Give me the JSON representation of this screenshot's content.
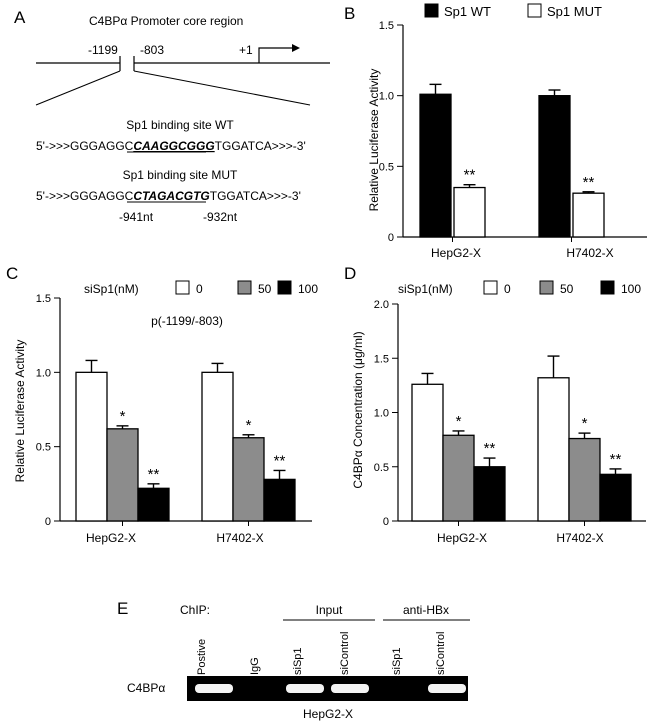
{
  "panel_labels": {
    "a": "A",
    "b": "B",
    "c": "C",
    "d": "D",
    "e": "E"
  },
  "panel_a": {
    "title": "C4BPα Promoter core region",
    "pos_1199": "-1199",
    "pos_803": "-803",
    "pos_plus1": "+1",
    "wt_label": "Sp1 binding site WT",
    "wt_seq_prefix": "5'->>>GGGAGGC",
    "wt_seq_site": "CAAGGCGGG",
    "wt_seq_suffix": "TGGATCA>>>-3'",
    "mut_label": "Sp1 binding site MUT",
    "mut_seq_prefix": "5'->>>GGGAGGC",
    "mut_seq_site": "CTAGACGTG",
    "mut_seq_suffix": "TGGATCA>>>-3'",
    "nt_left": "-941nt",
    "nt_right": "-932nt"
  },
  "panel_e": {
    "chip_label": "ChIP:",
    "group_input": "Input",
    "group_antihbx": "anti-HBx",
    "lanes": [
      "Postive",
      "IgG",
      "siSp1",
      "siControl",
      "siSp1",
      "siControl"
    ],
    "band_presence": [
      1,
      0,
      1,
      1,
      0,
      1
    ],
    "row_label": "C4BPα",
    "bottom_label": "HepG2-X"
  },
  "chart_data": [
    {
      "id": "B",
      "type": "bar",
      "title": "",
      "legend": [
        "Sp1 WT",
        "Sp1 MUT"
      ],
      "legend_colors": [
        "#000000",
        "#ffffff"
      ],
      "categories": [
        "HepG2-X",
        "H7402-X"
      ],
      "series": [
        {
          "name": "Sp1 WT",
          "values": [
            1.01,
            1.0
          ],
          "errors": [
            0.07,
            0.04
          ],
          "color": "#000000",
          "sig": [
            "",
            ""
          ]
        },
        {
          "name": "Sp1 MUT",
          "values": [
            0.35,
            0.31
          ],
          "errors": [
            0.02,
            0.01
          ],
          "color": "#ffffff",
          "sig": [
            "**",
            "**"
          ]
        }
      ],
      "xlabel": "",
      "ylabel": "Relative Luciferase Activity",
      "ylim": [
        0,
        1.5
      ],
      "yticks": [
        0,
        0.5,
        1.0,
        1.5
      ],
      "ytick_labels": [
        "0",
        "0.5",
        "1.0",
        "1.5"
      ],
      "annotation": ""
    },
    {
      "id": "C",
      "type": "bar",
      "title": "",
      "legend_title": "siSp1(nM)",
      "legend": [
        "0",
        "50",
        "100"
      ],
      "legend_colors": [
        "#ffffff",
        "#8c8c8c",
        "#000000"
      ],
      "categories": [
        "HepG2-X",
        "H7402-X"
      ],
      "series": [
        {
          "name": "0",
          "values": [
            1.0,
            1.0
          ],
          "errors": [
            0.08,
            0.06
          ],
          "color": "#ffffff",
          "sig": [
            "",
            ""
          ]
        },
        {
          "name": "50",
          "values": [
            0.62,
            0.56
          ],
          "errors": [
            0.02,
            0.02
          ],
          "color": "#8c8c8c",
          "sig": [
            "*",
            "*"
          ]
        },
        {
          "name": "100",
          "values": [
            0.22,
            0.28
          ],
          "errors": [
            0.03,
            0.06
          ],
          "color": "#000000",
          "sig": [
            "**",
            "**"
          ]
        }
      ],
      "xlabel": "",
      "ylabel": "Relative Luciferase Activity",
      "ylim": [
        0,
        1.5
      ],
      "yticks": [
        0,
        0.5,
        1.0,
        1.5
      ],
      "ytick_labels": [
        "0",
        "0.5",
        "1.0",
        "1.5"
      ],
      "annotation": "p(-1199/-803)"
    },
    {
      "id": "D",
      "type": "bar",
      "title": "",
      "legend_title": "siSp1(nM)",
      "legend": [
        "0",
        "50",
        "100"
      ],
      "legend_colors": [
        "#ffffff",
        "#8c8c8c",
        "#000000"
      ],
      "categories": [
        "HepG2-X",
        "H7402-X"
      ],
      "series": [
        {
          "name": "0",
          "values": [
            1.26,
            1.32
          ],
          "errors": [
            0.1,
            0.2
          ],
          "color": "#ffffff",
          "sig": [
            "",
            ""
          ]
        },
        {
          "name": "50",
          "values": [
            0.79,
            0.76
          ],
          "errors": [
            0.04,
            0.05
          ],
          "color": "#8c8c8c",
          "sig": [
            "*",
            "*"
          ]
        },
        {
          "name": "100",
          "values": [
            0.5,
            0.43
          ],
          "errors": [
            0.08,
            0.05
          ],
          "color": "#000000",
          "sig": [
            "**",
            "**"
          ]
        }
      ],
      "xlabel": "",
      "ylabel": "C4BPα Concentration (μg/ml)",
      "ylim": [
        0,
        2.0
      ],
      "yticks": [
        0,
        0.5,
        1.0,
        1.5,
        2.0
      ],
      "ytick_labels": [
        "0",
        "0.5",
        "1.0",
        "1.5",
        "2.0"
      ],
      "annotation": ""
    }
  ]
}
